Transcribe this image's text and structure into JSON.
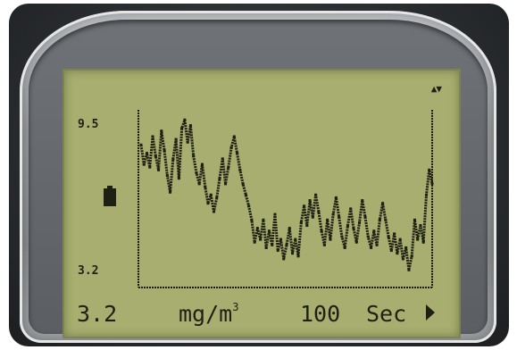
{
  "display": {
    "y_max": "9.5",
    "y_min": "3.2",
    "reading": "3.2",
    "unit": "mg/m",
    "unit_exp": "3",
    "time_value": "100",
    "time_unit": "Sec",
    "battery_icon": "battery-icon",
    "signal_icon": "signal-icon",
    "next_icon": "arrow-right-icon"
  },
  "chart_data": {
    "type": "line",
    "title": "",
    "xlabel": "",
    "ylabel": "mg/m3",
    "ylim": [
      3.2,
      9.5
    ],
    "x": [
      0,
      1,
      2,
      3,
      4,
      5,
      6,
      7,
      8,
      9,
      10,
      11,
      12,
      13,
      14,
      15,
      16,
      17,
      18,
      19,
      20,
      21,
      22,
      23,
      24,
      25,
      26,
      27,
      28,
      29,
      30,
      31,
      32,
      33,
      34,
      35,
      36,
      37,
      38,
      39,
      40,
      41,
      42,
      43,
      44,
      45,
      46,
      47,
      48,
      49,
      50,
      51,
      52,
      53,
      54,
      55,
      56,
      57,
      58,
      59,
      60,
      61,
      62,
      63,
      64,
      65,
      66,
      67,
      68,
      69,
      70,
      71,
      72,
      73,
      74,
      75,
      76,
      77,
      78,
      79,
      80,
      81,
      82,
      83,
      84,
      85,
      86,
      87,
      88,
      89,
      90,
      91,
      92,
      93,
      94,
      95,
      96,
      97,
      98,
      99,
      100
    ],
    "series": [
      {
        "values": [
          8.3,
          7.6,
          8.0,
          7.5,
          8.6,
          7.9,
          7.4,
          8.8,
          8.1,
          7.2,
          6.6,
          7.8,
          8.5,
          7.1,
          8.9,
          9.2,
          8.4,
          9.0,
          7.9,
          7.3,
          6.9,
          7.6,
          6.8,
          6.2,
          6.5,
          5.9,
          6.4,
          7.1,
          7.8,
          6.9,
          7.5,
          8.2,
          8.6,
          8.0,
          7.4,
          6.9,
          6.5,
          6.1,
          5.6,
          4.8,
          5.3,
          4.9,
          5.6,
          4.6,
          5.2,
          4.7,
          5.8,
          4.5,
          4.9,
          4.2,
          4.7,
          5.3,
          4.4,
          4.9,
          4.3,
          5.5,
          6.1,
          5.4,
          6.3,
          5.7,
          6.5,
          5.9,
          5.2,
          4.7,
          5.6,
          4.9,
          5.8,
          6.4,
          5.7,
          5.0,
          4.6,
          5.4,
          6.0,
          5.3,
          4.8,
          5.5,
          6.3,
          5.7,
          5.0,
          4.6,
          5.2,
          4.7,
          5.6,
          6.2,
          5.6,
          5.0,
          4.5,
          5.1,
          4.4,
          4.9,
          4.2,
          4.6,
          3.8,
          4.3,
          5.6,
          4.9,
          5.4,
          4.8,
          6.5,
          7.4,
          6.9
        ]
      }
    ]
  }
}
